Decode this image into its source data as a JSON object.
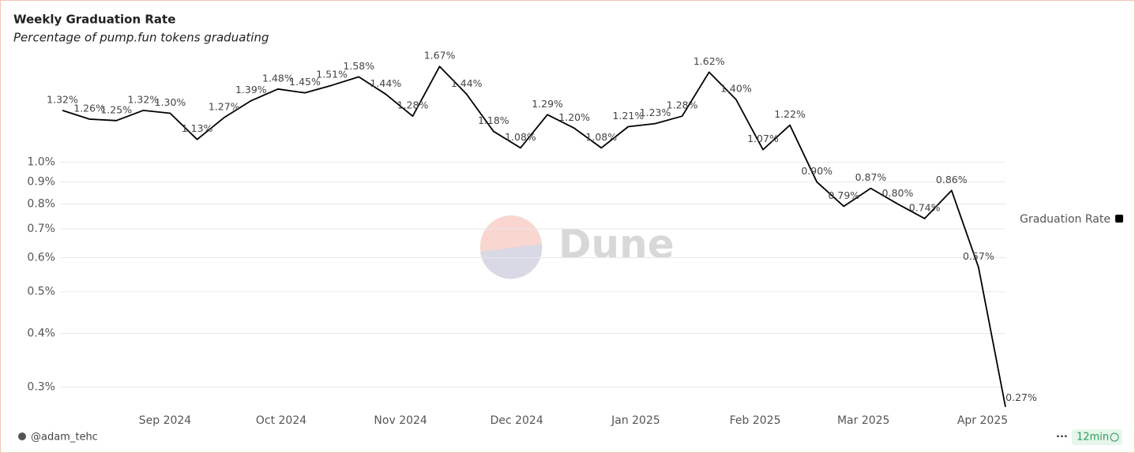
{
  "chart_data": {
    "type": "line",
    "title": "Weekly Graduation Rate",
    "subtitle": "Percentage of pump.fun tokens graduating",
    "categories": [
      null,
      null,
      null,
      null,
      null,
      null,
      null,
      null,
      null,
      null,
      null,
      null,
      null,
      null,
      null,
      null,
      null,
      null,
      null,
      null,
      null,
      null,
      null,
      null,
      null,
      null,
      null,
      null,
      null,
      null,
      null,
      null,
      null,
      null,
      null,
      null
    ],
    "series": [
      {
        "name": "Graduation Rate",
        "color": "#000000",
        "values": [
          1.32,
          1.26,
          1.25,
          1.32,
          1.3,
          1.13,
          1.27,
          1.39,
          1.48,
          1.45,
          1.51,
          1.58,
          1.44,
          1.28,
          1.67,
          1.44,
          1.18,
          1.08,
          1.29,
          1.2,
          1.08,
          1.21,
          1.23,
          1.28,
          1.62,
          1.4,
          1.07,
          1.22,
          0.9,
          0.79,
          0.87,
          0.8,
          0.74,
          0.86,
          0.57,
          0.27
        ],
        "value_labels": [
          "1.32%",
          "1.26%",
          "1.25%",
          "1.32%",
          "1.30%",
          "1.13%",
          "1.27%",
          "1.39%",
          "1.48%",
          "1.45%",
          "1.51%",
          "1.58%",
          "1.44%",
          "1.28%",
          "1.67%",
          "1.44%",
          "1.18%",
          "1.08%",
          "1.29%",
          "1.20%",
          "1.08%",
          "1.21%",
          "1.23%",
          "1.28%",
          "1.62%",
          "1.40%",
          "1.07%",
          "1.22%",
          "0.90%",
          "0.79%",
          "0.87%",
          "0.80%",
          "0.74%",
          "0.86%",
          "0.57%",
          "0.27%"
        ]
      }
    ],
    "xticks": [
      {
        "value": 3.81,
        "label": "Sep 2024"
      },
      {
        "value": 8.12,
        "label": "Oct 2024"
      },
      {
        "value": 12.55,
        "label": "Nov 2024"
      },
      {
        "value": 16.86,
        "label": "Dec 2024"
      },
      {
        "value": 21.28,
        "label": "Jan 2025"
      },
      {
        "value": 25.71,
        "label": "Feb 2025"
      },
      {
        "value": 29.73,
        "label": "Mar 2025"
      },
      {
        "value": 34.15,
        "label": "Apr 2025"
      }
    ],
    "ylim": [
      0.265,
      1.85
    ],
    "yticks": [
      {
        "value": 0.3,
        "label": "0.3%"
      },
      {
        "value": 0.4,
        "label": "0.4%"
      },
      {
        "value": 0.5,
        "label": "0.5%"
      },
      {
        "value": 0.6,
        "label": "0.6%"
      },
      {
        "value": 0.7,
        "label": "0.7%"
      },
      {
        "value": 0.8,
        "label": "0.8%"
      },
      {
        "value": 0.9,
        "label": "0.9%"
      },
      {
        "value": 1.0,
        "label": "1.0%"
      }
    ],
    "log_scale": true,
    "grid": true,
    "legend_position": "right",
    "watermark": "Dune",
    "author": "@adam_tehc",
    "refresh": "12min"
  }
}
